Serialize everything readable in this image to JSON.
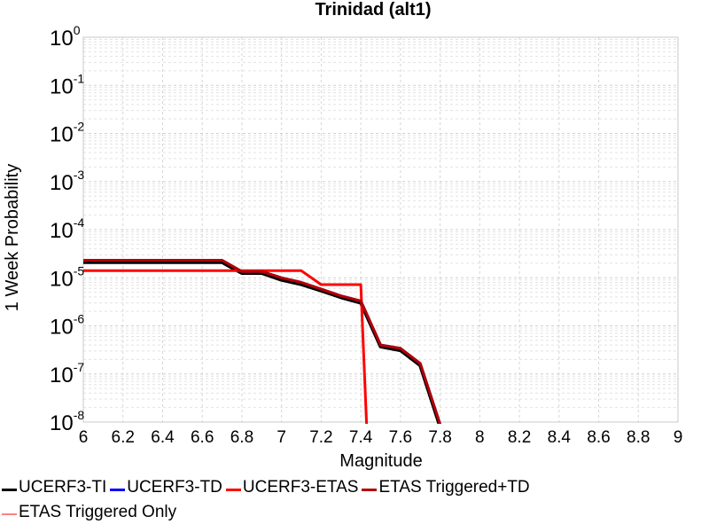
{
  "chart_data": {
    "type": "line",
    "title": "Trinidad (alt1)",
    "xlabel": "Magnitude",
    "ylabel": "1 Week Probability",
    "xlim": [
      6,
      9
    ],
    "ylim": [
      1e-08,
      1
    ],
    "yscale": "log",
    "grid": true,
    "x_ticks": [
      "6",
      "6.2",
      "6.4",
      "6.6",
      "6.8",
      "7",
      "7.2",
      "7.4",
      "7.6",
      "7.8",
      "8",
      "8.2",
      "8.4",
      "8.6",
      "8.8",
      "9"
    ],
    "y_tick_exponents": [
      "0",
      "-1",
      "-2",
      "-3",
      "-4",
      "-5",
      "-6",
      "-7",
      "-8"
    ],
    "legend_placement": "bottom",
    "series": [
      {
        "name": "UCERF3-TI",
        "color": "#000000",
        "x": [
          6.0,
          6.1,
          6.2,
          6.3,
          6.4,
          6.5,
          6.6,
          6.7,
          6.8,
          6.9,
          7.0,
          7.1,
          7.2,
          7.3,
          7.4,
          7.5,
          7.6,
          7.7,
          7.8
        ],
        "y": [
          2.1e-05,
          2.1e-05,
          2.1e-05,
          2.1e-05,
          2.1e-05,
          2.1e-05,
          2.1e-05,
          2.1e-05,
          1.25e-05,
          1.25e-05,
          9e-06,
          7.3e-06,
          5.4e-06,
          3.9e-06,
          3e-06,
          3.7e-07,
          3.1e-07,
          1.5e-07,
          8e-09
        ]
      },
      {
        "name": "UCERF3-TD",
        "color": "#0000ff",
        "x": [
          6.0,
          6.1,
          6.2,
          6.3,
          6.4,
          6.5,
          6.6,
          6.7,
          6.8,
          6.9,
          7.0,
          7.1,
          7.2,
          7.3,
          7.4,
          7.5,
          7.6,
          7.7,
          7.8
        ],
        "y": [
          2.3e-05,
          2.3e-05,
          2.3e-05,
          2.3e-05,
          2.3e-05,
          2.3e-05,
          2.3e-05,
          2.3e-05,
          1.35e-05,
          1.35e-05,
          1e-05,
          8e-06,
          5.8e-06,
          4.2e-06,
          3.3e-06,
          4e-07,
          3.4e-07,
          1.65e-07,
          9e-09
        ]
      },
      {
        "name": "UCERF3-ETAS",
        "color": "#ff0000",
        "x": [
          6.0,
          6.1,
          6.2,
          6.3,
          6.4,
          6.5,
          6.6,
          6.7,
          6.8,
          6.9,
          7.0,
          7.1,
          7.2,
          7.3,
          7.4,
          7.43
        ],
        "y": [
          1.4e-05,
          1.4e-05,
          1.4e-05,
          1.4e-05,
          1.4e-05,
          1.4e-05,
          1.4e-05,
          1.4e-05,
          1.4e-05,
          1.4e-05,
          1.4e-05,
          1.4e-05,
          7.2e-06,
          7.2e-06,
          7.2e-06,
          5e-09
        ]
      },
      {
        "name": "ETAS Triggered+TD",
        "color": "#b40000",
        "x": [
          6.0,
          6.1,
          6.2,
          6.3,
          6.4,
          6.5,
          6.6,
          6.7,
          6.8,
          6.9,
          7.0,
          7.1,
          7.2,
          7.3,
          7.4,
          7.5,
          7.6,
          7.7,
          7.8
        ],
        "y": [
          2.3e-05,
          2.3e-05,
          2.3e-05,
          2.3e-05,
          2.3e-05,
          2.3e-05,
          2.3e-05,
          2.3e-05,
          1.35e-05,
          1.35e-05,
          1e-05,
          8e-06,
          5.8e-06,
          4.2e-06,
          3.3e-06,
          4e-07,
          3.4e-07,
          1.65e-07,
          9e-09
        ]
      },
      {
        "name": "ETAS Triggered Only",
        "color": "#ff8080",
        "x": [],
        "y": []
      }
    ]
  }
}
